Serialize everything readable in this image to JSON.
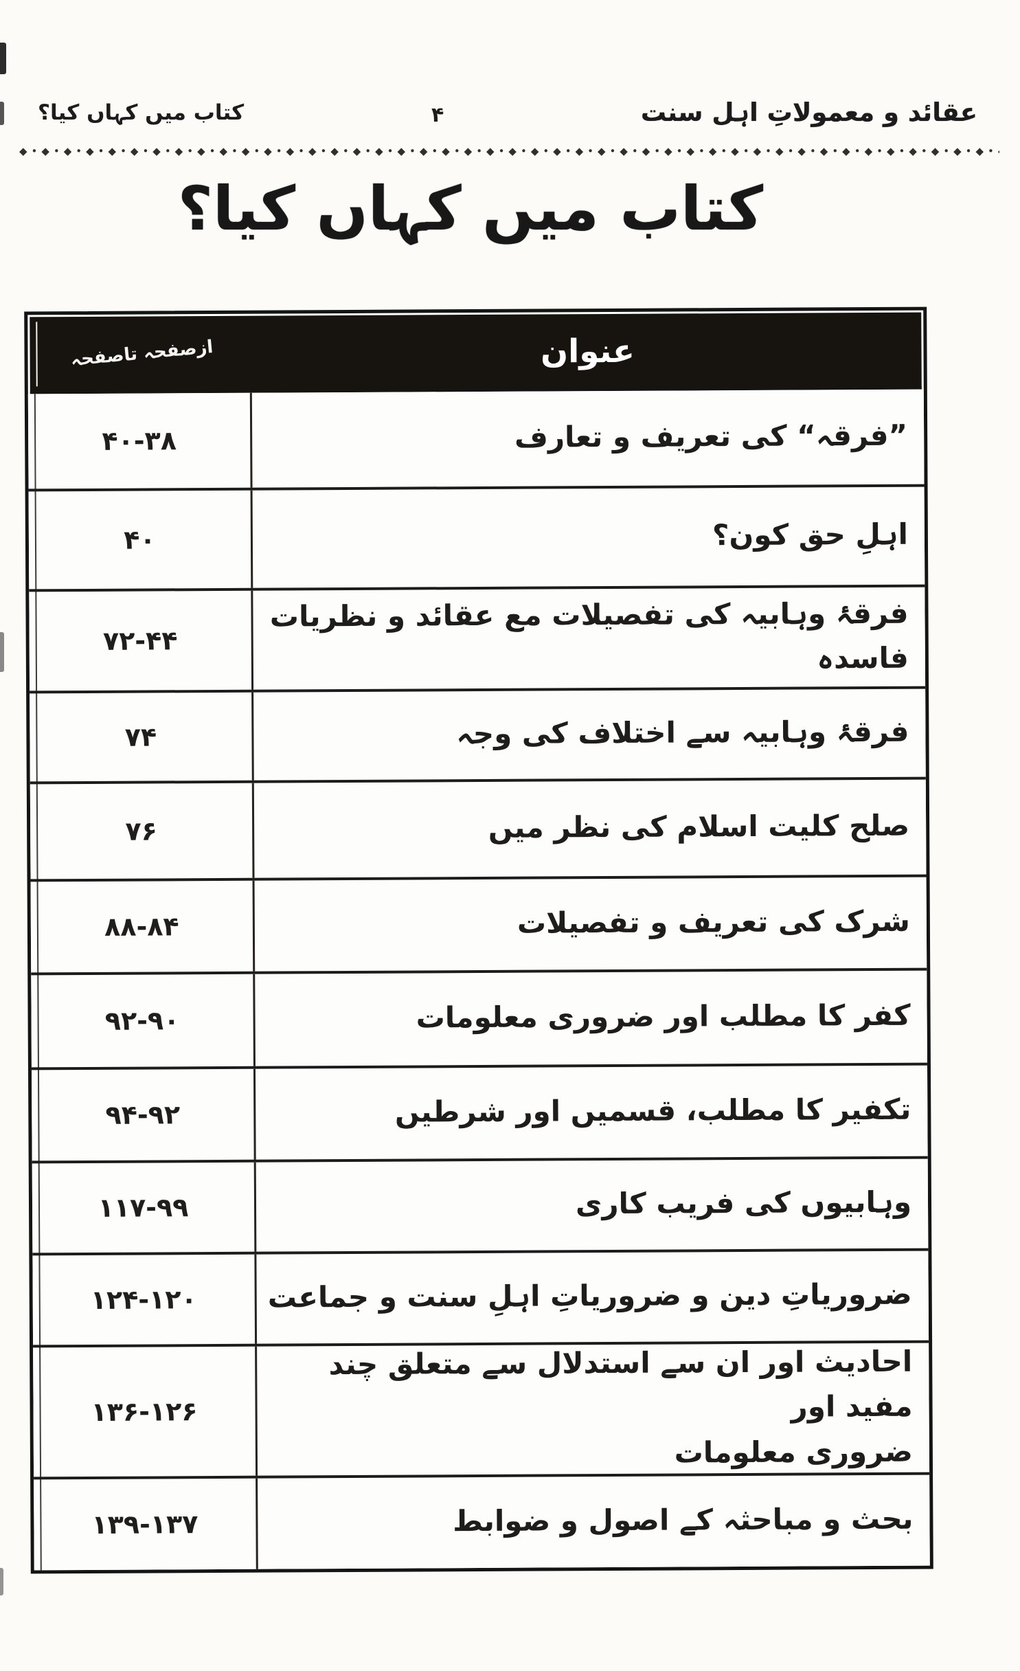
{
  "header": {
    "book_title": "عقائد و معمولاتِ اہل سنت",
    "page_number": "۴",
    "chapter_title": "کتاب میں کہاں کیا؟"
  },
  "ornament": "◆•◆•◆•◆•◆•◆•◆•◆•◆•◆•◆•◆•◆•◆•◆•◆•◆•◆•◆•◆•◆•◆•◆•◆•◆•◆•◆•◆•◆•◆•◆•◆•◆•◆•◆•◆•◆•◆•◆•◆•◆•◆•◆•◆•◆•◆•",
  "main_title": "کتاب میں کہاں کیا؟",
  "table": {
    "columns": {
      "title": "عنوان",
      "pages": "ازصفحہ تاصفحہ"
    },
    "rows": [
      {
        "title": "”فرقہ“ کی تعریف و تعارف",
        "pages": "۴۰-۳۸"
      },
      {
        "title": "اہلِ حق کون؟",
        "pages": "۴۰"
      },
      {
        "title": "فرقۂ وہابیہ کی تفصیلات مع عقائد و نظریات فاسدہ",
        "pages": "۷۲-۴۴"
      },
      {
        "title": "فرقۂ وہابیہ سے اختلاف کی وجہ",
        "pages": "۷۴"
      },
      {
        "title": "صلح کلیت اسلام کی نظر میں",
        "pages": "۷۶"
      },
      {
        "title": "شرک کی تعریف و تفصیلات",
        "pages": "۸۸-۸۴"
      },
      {
        "title": "کفر کا مطلب اور ضروری معلومات",
        "pages": "۹۲-۹۰"
      },
      {
        "title": "تکفیر کا مطلب، قسمیں اور شرطیں",
        "pages": "۹۴-۹۲"
      },
      {
        "title": "وہابیوں کی فریب کاری",
        "pages": "۱۱۷-۹۹"
      },
      {
        "title": "ضروریاتِ دین و ضروریاتِ اہلِ سنت و جماعت",
        "pages": "۱۲۴-۱۲۰"
      },
      {
        "title": "احادیث اور ان سے استدلال سے متعلق چند مفید اور\nضروری معلومات",
        "pages": "۱۳۶-۱۲۶"
      },
      {
        "title": "بحث و مباحثہ کے اصول و ضوابط",
        "pages": "۱۳۹-۱۳۷"
      }
    ]
  }
}
